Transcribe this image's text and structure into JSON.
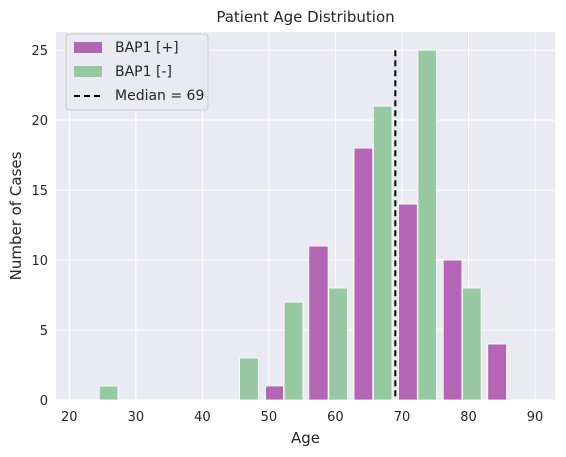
{
  "chart_data": {
    "type": "bar",
    "title": "Patient Age Distribution",
    "xlabel": "Age",
    "ylabel": "Number of Cases",
    "xlim": [
      18,
      93
    ],
    "ylim": [
      0,
      26.3
    ],
    "xticks": [
      20,
      30,
      40,
      50,
      60,
      70,
      80,
      90
    ],
    "yticks": [
      0,
      5,
      10,
      15,
      20,
      25
    ],
    "grid": true,
    "legend_position": "top-left",
    "series": [
      {
        "name": "BAP1 [+]",
        "color": "#b565b5",
        "bins": [
          {
            "x0": 49.5,
            "x1": 52.2,
            "value": 1
          },
          {
            "x0": 56.0,
            "x1": 58.9,
            "value": 11
          },
          {
            "x0": 62.8,
            "x1": 65.6,
            "value": 18
          },
          {
            "x0": 69.5,
            "x1": 72.3,
            "value": 14
          },
          {
            "x0": 76.2,
            "x1": 79.0,
            "value": 10
          },
          {
            "x0": 82.9,
            "x1": 85.7,
            "value": 4
          }
        ]
      },
      {
        "name": "BAP1 [-]",
        "color": "#96c8a2",
        "bins": [
          {
            "x0": 24.5,
            "x1": 27.3,
            "value": 1
          },
          {
            "x0": 45.6,
            "x1": 48.4,
            "value": 3
          },
          {
            "x0": 52.3,
            "x1": 55.1,
            "value": 7
          },
          {
            "x0": 59.0,
            "x1": 61.8,
            "value": 8
          },
          {
            "x0": 65.7,
            "x1": 68.5,
            "value": 21
          },
          {
            "x0": 72.4,
            "x1": 75.2,
            "value": 25
          },
          {
            "x0": 79.1,
            "x1": 81.9,
            "value": 8
          }
        ]
      }
    ],
    "median": {
      "label": "Median = 69",
      "x": 69,
      "color": "#000000"
    }
  },
  "colors": {
    "plot_background": "#eaeaf2",
    "grid": "#ffffff"
  }
}
